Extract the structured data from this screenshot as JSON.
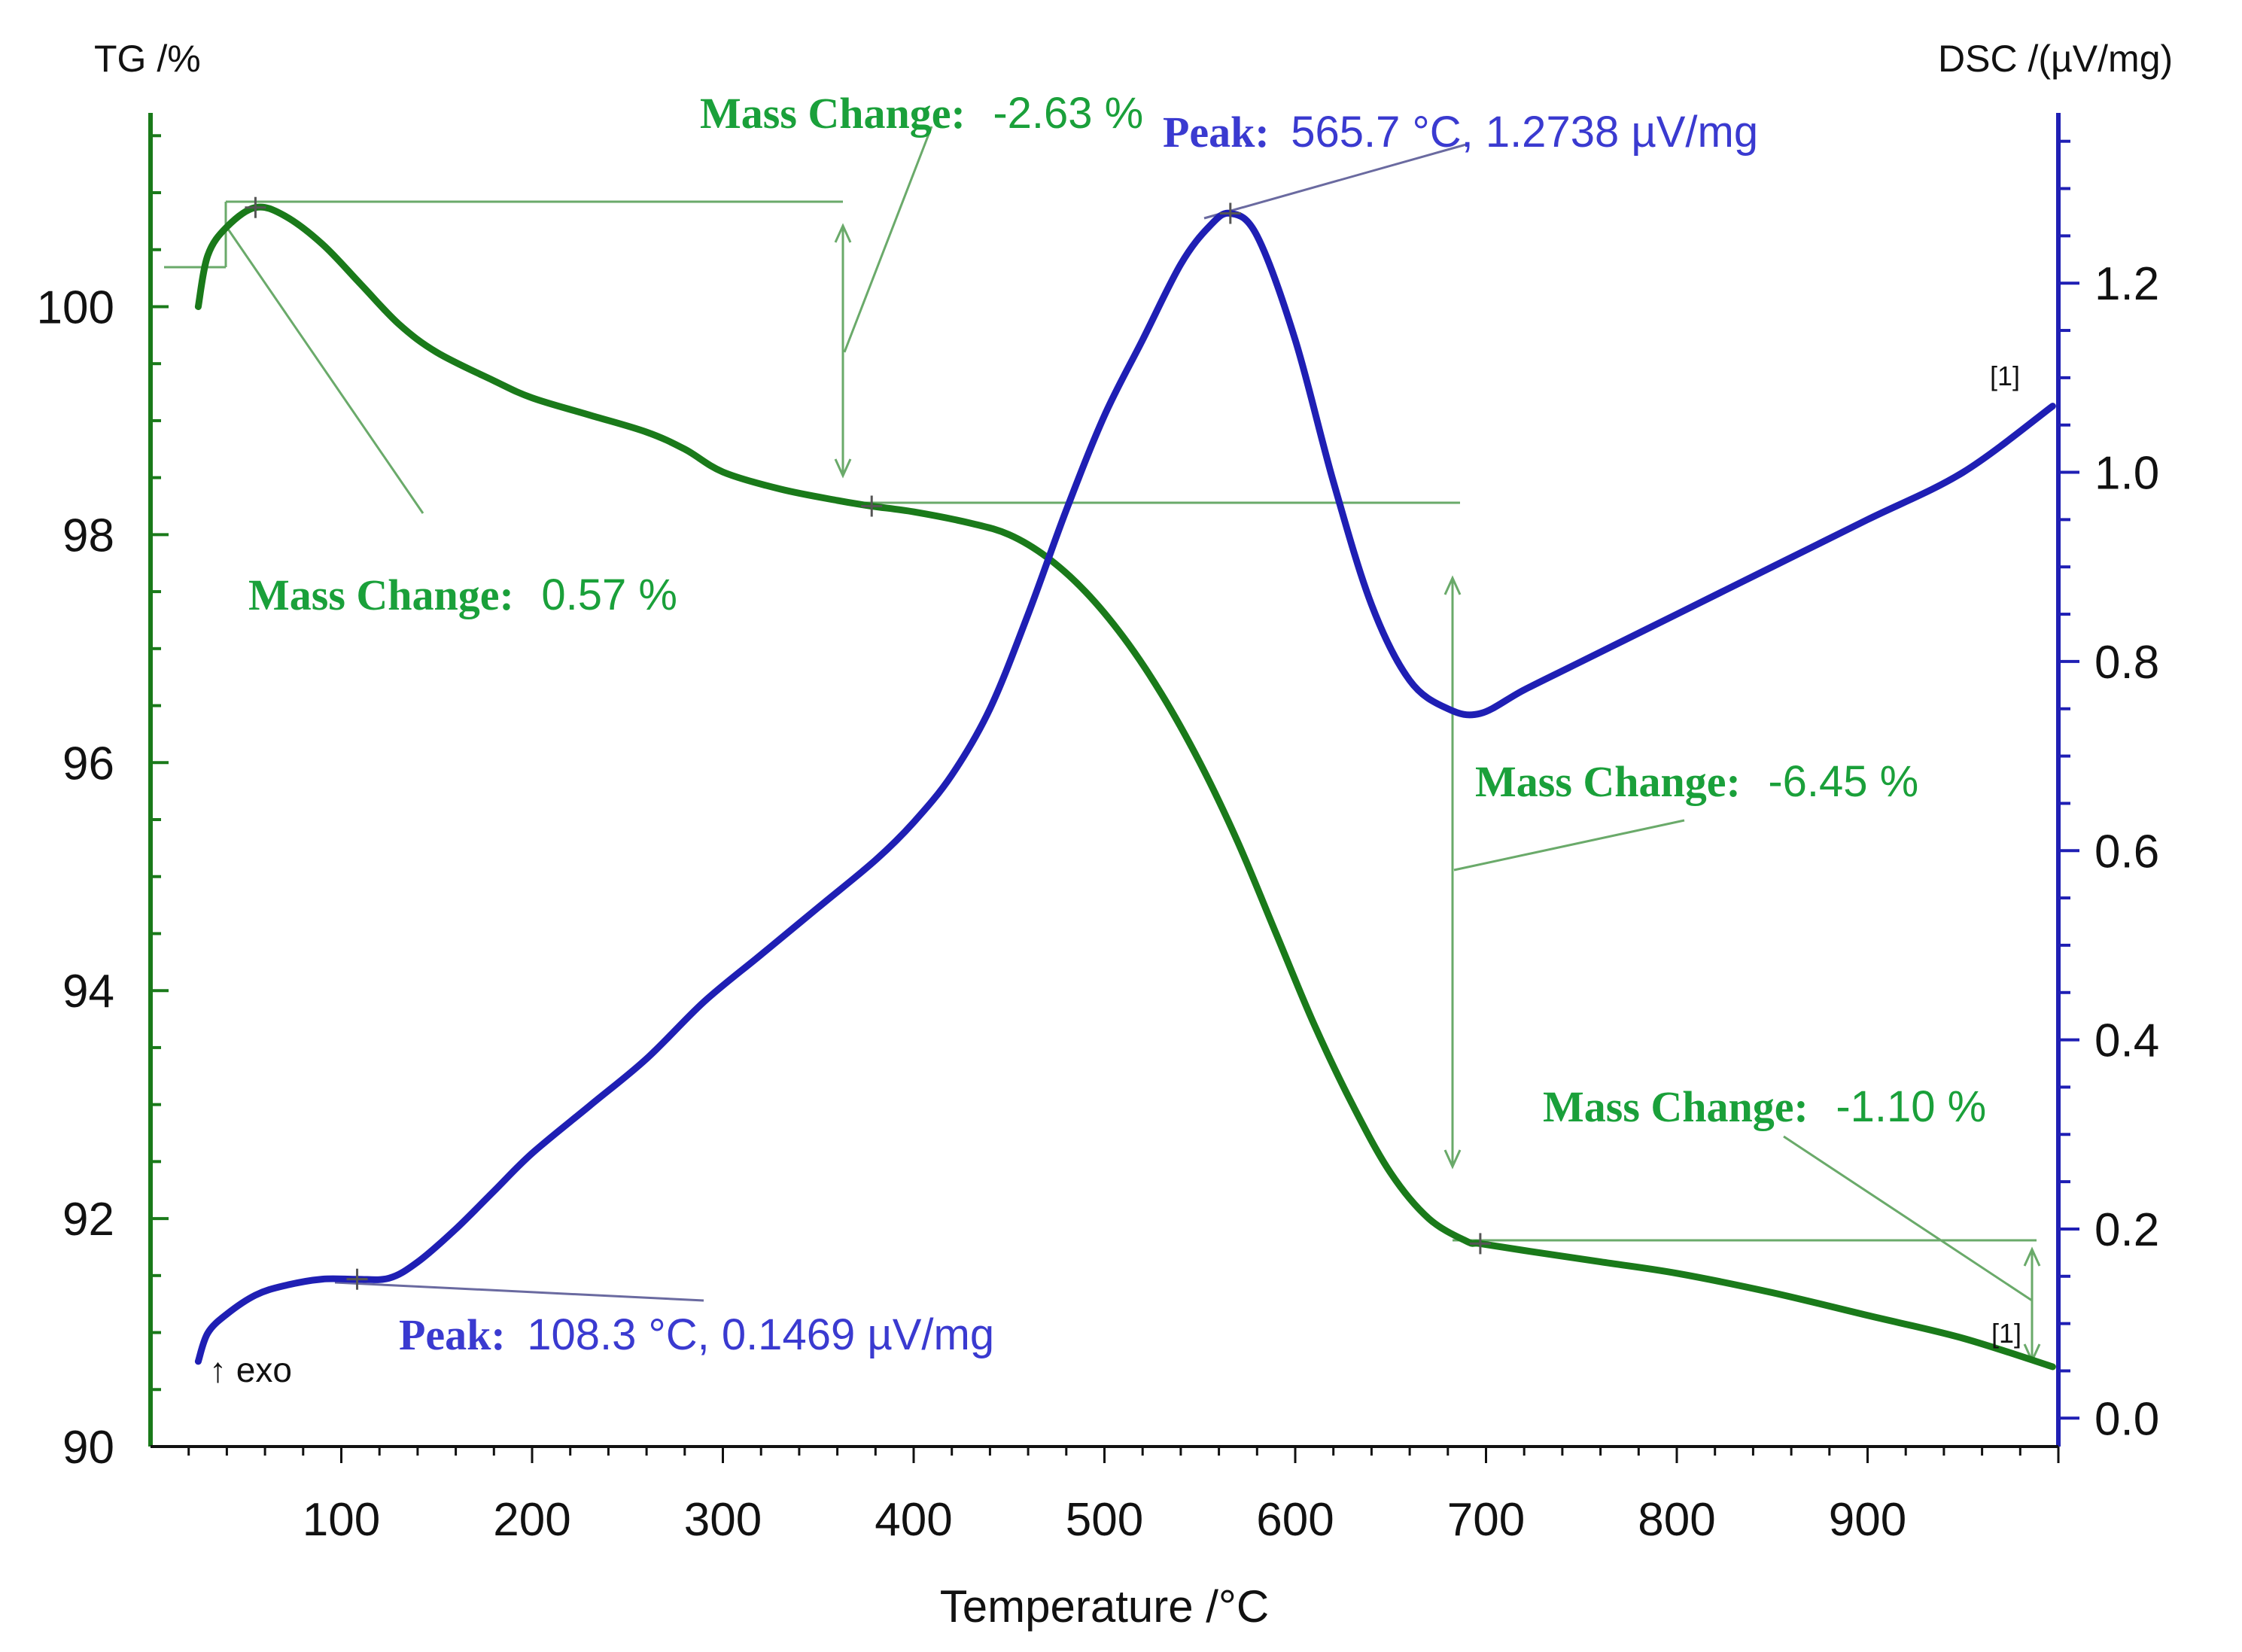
{
  "colors": {
    "tg": "#1a7a1a",
    "dsc": "#1f1fb4",
    "tg_annotation": "#1aa03a",
    "tg_annotation_line": "#6aaa6a",
    "dsc_annotation": "#3a3ad0",
    "dsc_annotation_line": "#6a6aa0"
  },
  "chart_data": {
    "type": "line",
    "xlabel": "Temperature /°C",
    "ylabel_left": "TG /%",
    "ylabel_right": "DSC /(µV/mg)",
    "xlim": [
      0,
      1000
    ],
    "ylim_left": [
      90,
      101.7
    ],
    "ylim_right": [
      -0.03,
      1.38
    ],
    "x_ticks": [
      "100",
      "200",
      "300",
      "400",
      "500",
      "600",
      "700",
      "800",
      "900"
    ],
    "y_left_ticks": [
      "90",
      "92",
      "94",
      "96",
      "98",
      "100"
    ],
    "y_right_ticks": [
      "0.0",
      "0.2",
      "0.4",
      "0.6",
      "0.8",
      "1.0",
      "1.2"
    ],
    "series": [
      {
        "name": "TG",
        "axis": "left",
        "points": [
          [
            25,
            100.0
          ],
          [
            30,
            100.45
          ],
          [
            40,
            100.7
          ],
          [
            55,
            100.87
          ],
          [
            70,
            100.8
          ],
          [
            90,
            100.55
          ],
          [
            110,
            100.2
          ],
          [
            130,
            99.85
          ],
          [
            150,
            99.6
          ],
          [
            180,
            99.35
          ],
          [
            200,
            99.2
          ],
          [
            230,
            99.05
          ],
          [
            260,
            98.9
          ],
          [
            280,
            98.75
          ],
          [
            300,
            98.55
          ],
          [
            330,
            98.4
          ],
          [
            360,
            98.3
          ],
          [
            378,
            98.25
          ],
          [
            400,
            98.2
          ],
          [
            430,
            98.1
          ],
          [
            450,
            98.0
          ],
          [
            470,
            97.8
          ],
          [
            490,
            97.5
          ],
          [
            510,
            97.1
          ],
          [
            530,
            96.6
          ],
          [
            550,
            96.0
          ],
          [
            570,
            95.3
          ],
          [
            590,
            94.5
          ],
          [
            610,
            93.7
          ],
          [
            630,
            93.0
          ],
          [
            650,
            92.4
          ],
          [
            670,
            92.0
          ],
          [
            690,
            91.8
          ],
          [
            697,
            91.78
          ],
          [
            720,
            91.72
          ],
          [
            760,
            91.62
          ],
          [
            800,
            91.52
          ],
          [
            850,
            91.35
          ],
          [
            900,
            91.15
          ],
          [
            950,
            90.95
          ],
          [
            997,
            90.7
          ]
        ]
      },
      {
        "name": "DSC",
        "axis": "right",
        "points": [
          [
            25,
            0.06
          ],
          [
            30,
            0.09
          ],
          [
            40,
            0.11
          ],
          [
            55,
            0.13
          ],
          [
            70,
            0.14
          ],
          [
            90,
            0.147
          ],
          [
            108,
            0.1469
          ],
          [
            125,
            0.148
          ],
          [
            140,
            0.165
          ],
          [
            160,
            0.2
          ],
          [
            180,
            0.24
          ],
          [
            200,
            0.28
          ],
          [
            230,
            0.33
          ],
          [
            260,
            0.38
          ],
          [
            290,
            0.44
          ],
          [
            320,
            0.49
          ],
          [
            350,
            0.54
          ],
          [
            380,
            0.59
          ],
          [
            400,
            0.63
          ],
          [
            420,
            0.68
          ],
          [
            440,
            0.75
          ],
          [
            460,
            0.85
          ],
          [
            480,
            0.96
          ],
          [
            500,
            1.06
          ],
          [
            520,
            1.14
          ],
          [
            540,
            1.22
          ],
          [
            555,
            1.26
          ],
          [
            566,
            1.2738
          ],
          [
            580,
            1.25
          ],
          [
            600,
            1.14
          ],
          [
            620,
            0.99
          ],
          [
            640,
            0.86
          ],
          [
            660,
            0.78
          ],
          [
            680,
            0.75
          ],
          [
            697,
            0.745
          ],
          [
            720,
            0.77
          ],
          [
            750,
            0.8
          ],
          [
            800,
            0.85
          ],
          [
            850,
            0.9
          ],
          [
            900,
            0.95
          ],
          [
            950,
            1.0
          ],
          [
            997,
            1.07
          ]
        ]
      }
    ],
    "annotations": [
      {
        "label": "Mass Change:",
        "value": "0.57 %",
        "series": "TG"
      },
      {
        "label": "Mass Change:",
        "value": "-2.63 %",
        "series": "TG"
      },
      {
        "label": "Mass Change:",
        "value": "-6.45 %",
        "series": "TG"
      },
      {
        "label": "Mass Change:",
        "value": "-1.10 %",
        "series": "TG"
      },
      {
        "label": "Peak:",
        "value": "565.7 °C, 1.2738 µV/mg",
        "series": "DSC"
      },
      {
        "label": "Peak:",
        "value": "108.3 °C, 0.1469 µV/mg",
        "series": "DSC"
      }
    ],
    "exo_note": "↑ exo",
    "segment_markers": [
      "[1]",
      "[1]"
    ]
  }
}
